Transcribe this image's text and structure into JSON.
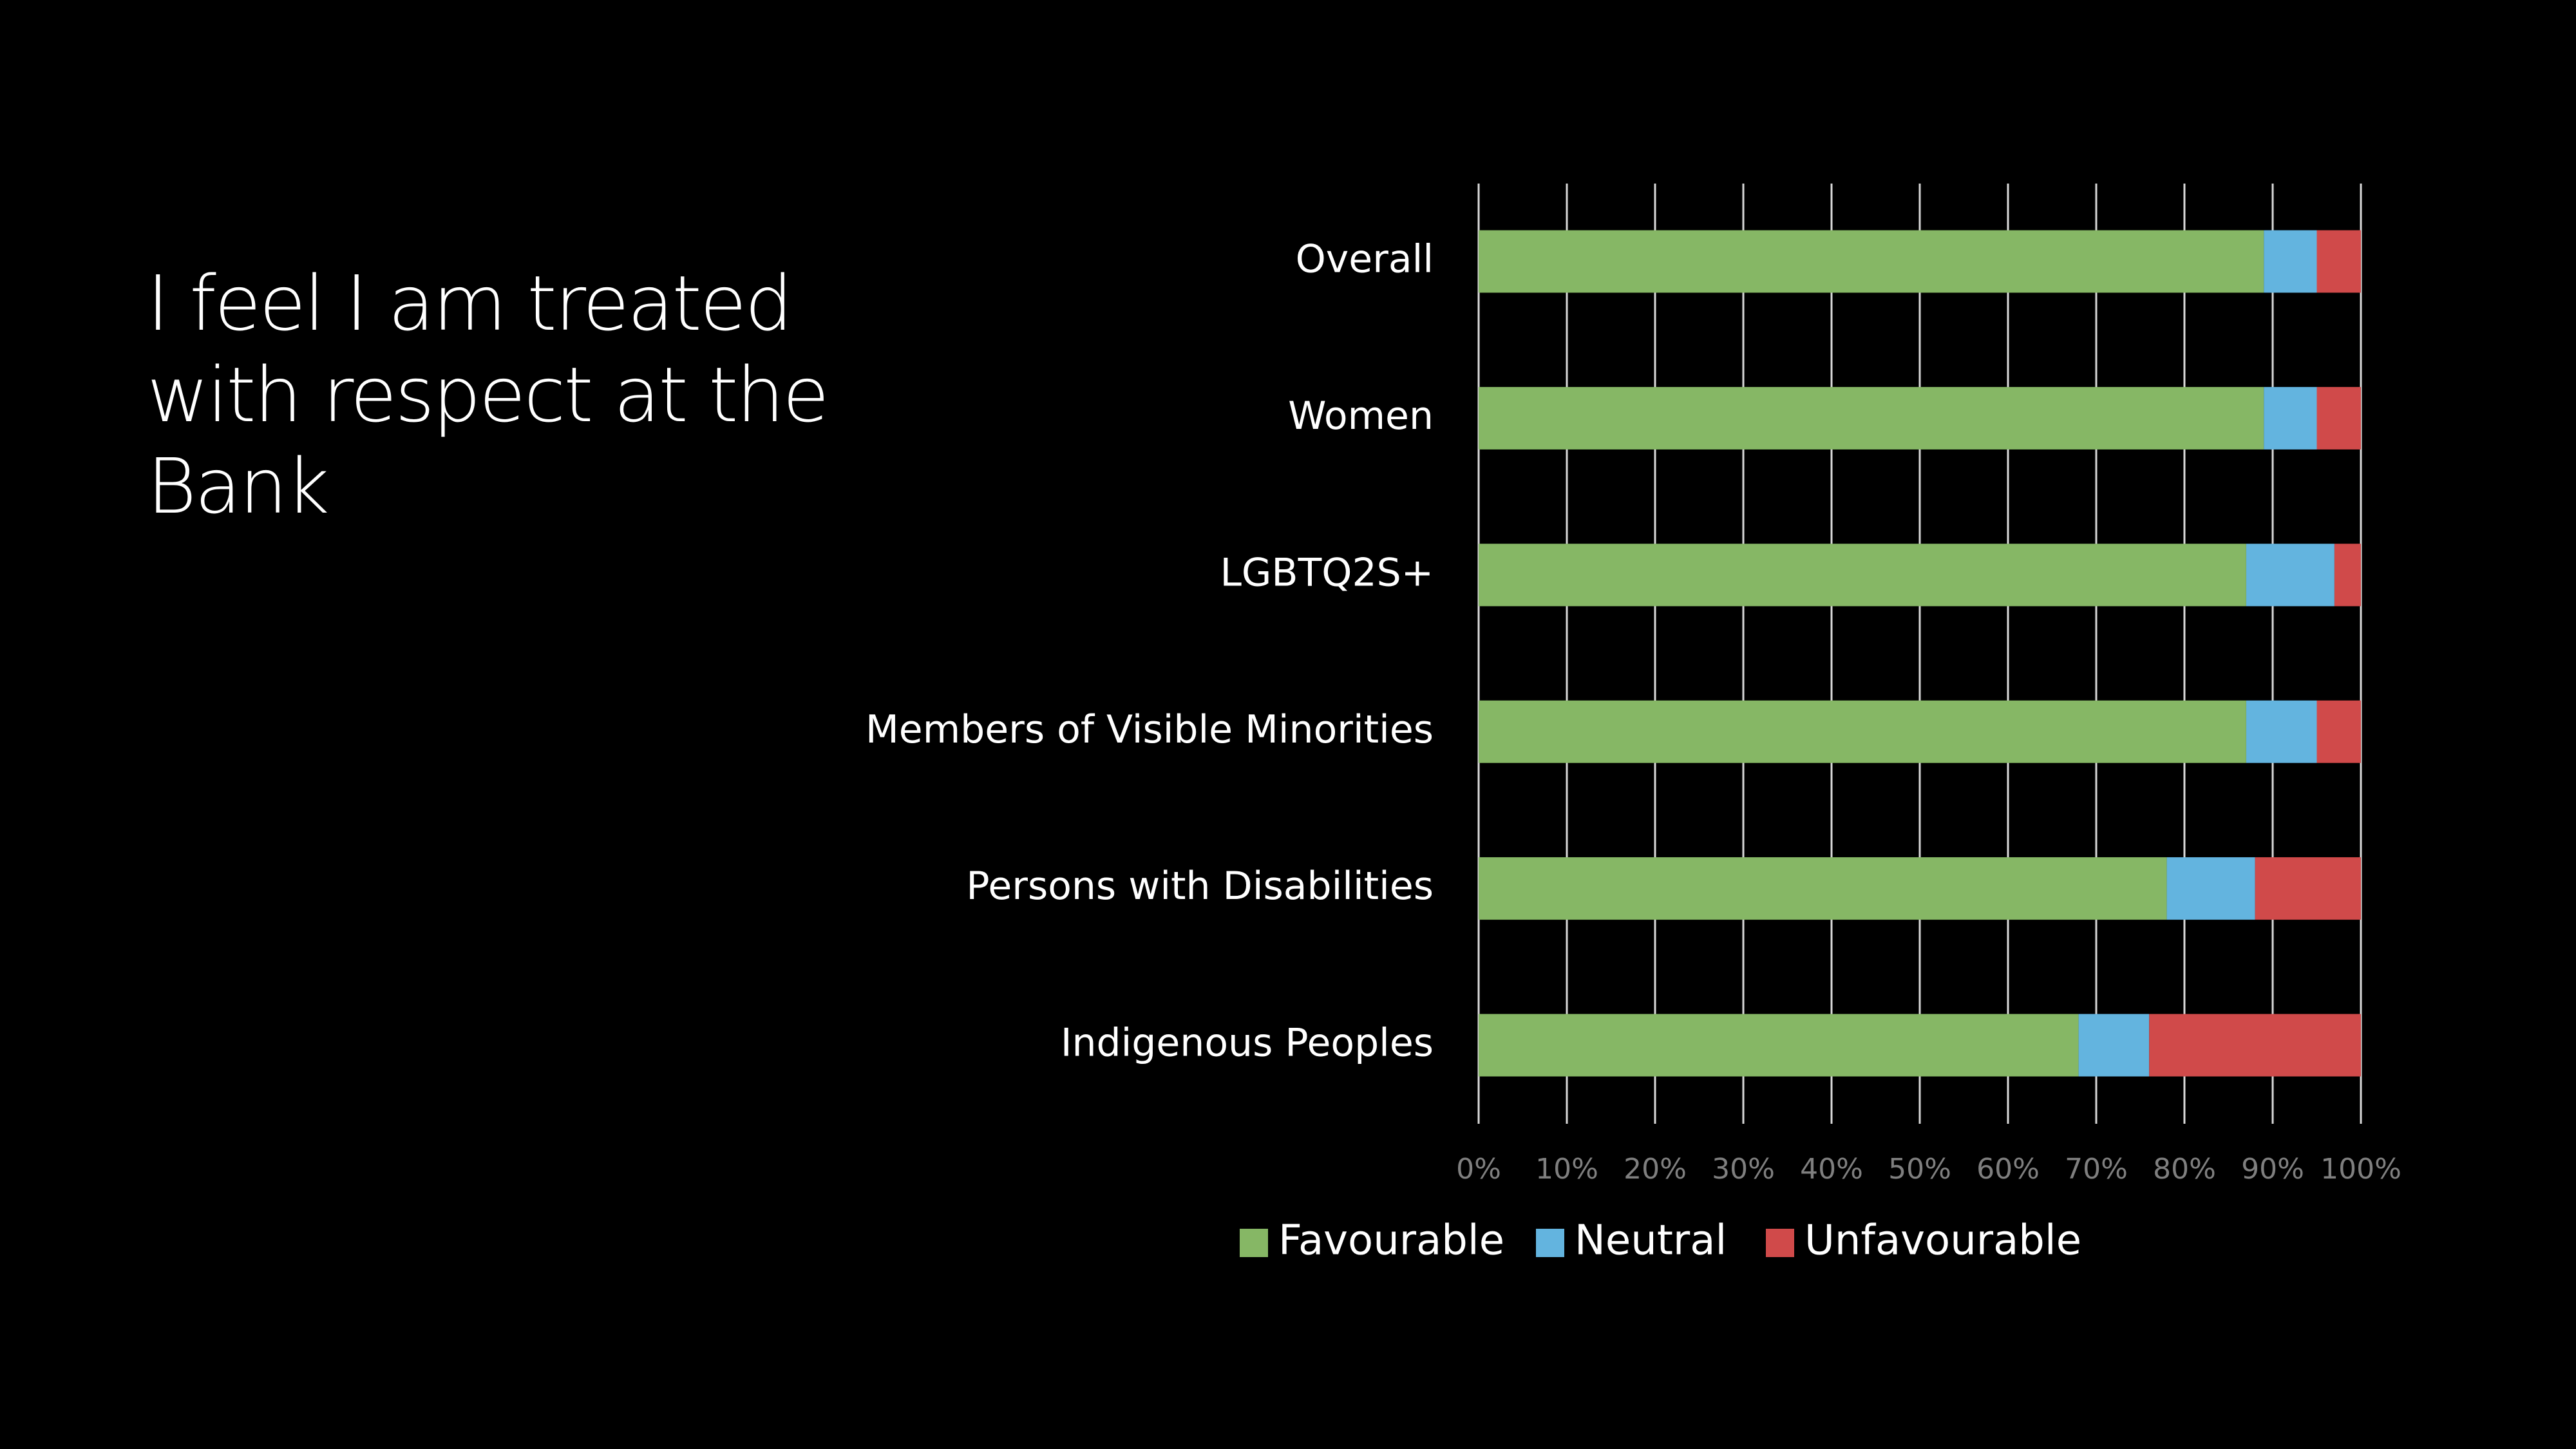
{
  "slide": {
    "title": "I feel I am treated with respect at the Bank"
  },
  "colors": {
    "background": "#000000",
    "favourable": "#86b765",
    "neutral": "#63b4df",
    "unfavourable": "#d04a4a",
    "gridline": "#d9d9d9",
    "tick_text": "#7f7f7f",
    "label_text": "#ffffff"
  },
  "chart_data": {
    "type": "bar",
    "orientation": "horizontal",
    "stacked": true,
    "categories": [
      "Overall",
      "Women",
      "LGBTQ2S+",
      "Members of Visible Minorities",
      "Persons with Disabilities",
      "Indigenous Peoples"
    ],
    "series": [
      {
        "name": "Favourable",
        "values": [
          89,
          89,
          87,
          87,
          78,
          68
        ]
      },
      {
        "name": "Neutral",
        "values": [
          6,
          6,
          10,
          8,
          10,
          8
        ]
      },
      {
        "name": "Unfavourable",
        "values": [
          5,
          5,
          3,
          5,
          12,
          24
        ]
      }
    ],
    "xlim": [
      0,
      100
    ],
    "xticks": [
      "0%",
      "10%",
      "20%",
      "30%",
      "40%",
      "50%",
      "60%",
      "70%",
      "80%",
      "90%",
      "100%"
    ],
    "grid": true,
    "legend_position": "bottom"
  }
}
